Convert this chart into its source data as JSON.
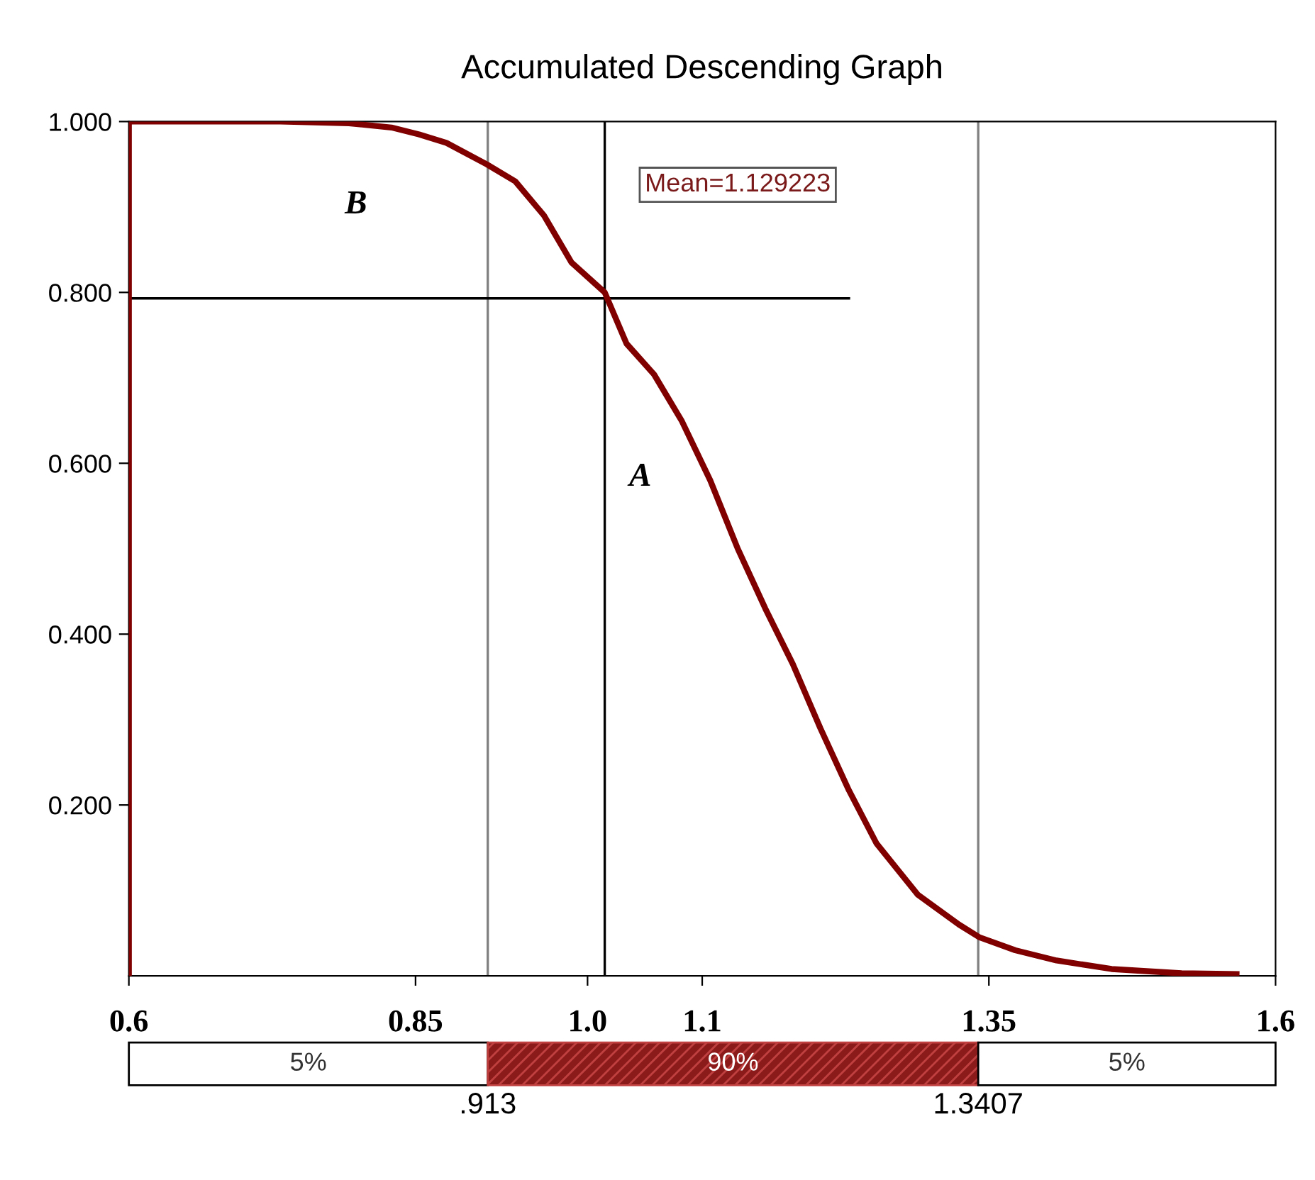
{
  "chart_data": {
    "type": "line",
    "title": "Accumulated Descending Graph",
    "series": [
      {
        "color": "#800000",
        "x": [
          0.6,
          0.6,
          0.732,
          0.792,
          0.829,
          0.853,
          0.877,
          0.912,
          0.937,
          0.962,
          0.986,
          1.015,
          1.034,
          1.058,
          1.082,
          1.107,
          1.131,
          1.155,
          1.179,
          1.203,
          1.228,
          1.252,
          1.288,
          1.324,
          1.342,
          1.373,
          1.409,
          1.457,
          1.518,
          1.566
        ],
        "values": [
          0.0,
          1.0,
          1.0,
          0.998,
          0.993,
          0.985,
          0.975,
          0.95,
          0.93,
          0.89,
          0.835,
          0.8,
          0.74,
          0.704,
          0.65,
          0.58,
          0.5,
          0.43,
          0.365,
          0.29,
          0.217,
          0.155,
          0.095,
          0.06,
          0.045,
          0.03,
          0.018,
          0.008,
          0.003,
          0.002
        ]
      },
      {
        "color": "#000000",
        "x": [
          0.6,
          1.228
        ],
        "values": [
          0.793,
          0.793
        ]
      }
    ],
    "xlim": [
      0.6,
      1.6
    ],
    "ylim": [
      0,
      1
    ],
    "xticks": [
      0.6,
      0.85,
      {
        "value": 1.0,
        "label": "1.0"
      },
      1.1,
      1.35,
      1.6
    ],
    "yticks": [
      {
        "value": 0.2,
        "label": "0.200"
      },
      {
        "value": 0.4,
        "label": "0.400"
      },
      {
        "value": 0.6,
        "label": "0.600"
      },
      {
        "value": 0.8,
        "label": "0.800"
      },
      {
        "value": 1.0,
        "label": "1.000"
      }
    ],
    "ref_lines": [
      {
        "axis": "x",
        "value": 0.913,
        "color": "#808080"
      },
      {
        "axis": "x",
        "value": 1.3407,
        "color": "#808080"
      },
      {
        "axis": "x",
        "value": 1.015,
        "color": "#000000"
      }
    ],
    "annotations": [
      "Mean=1.129223",
      "A",
      "B",
      "5%",
      "90%",
      "5%",
      ".913",
      "1.3407"
    ],
    "grid": false,
    "legend": false
  }
}
